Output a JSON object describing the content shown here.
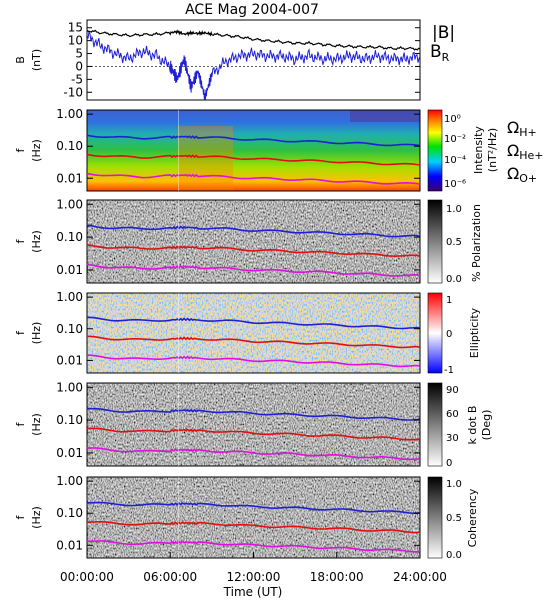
{
  "chart_data": [
    {
      "type": "line",
      "title": "ACE Mag 2004-007",
      "ylabel": "B\n(nT)",
      "y_ticks": [
        "15",
        "10",
        "5",
        "0",
        "-5",
        "-10"
      ],
      "ylim": [
        -13,
        18
      ],
      "legend": [
        {
          "name": "|B|",
          "color": "#000000"
        },
        {
          "name": "B",
          "sub": "R",
          "color": "#1f1fd6"
        }
      ],
      "x_hours": [
        0,
        1,
        2,
        3,
        4,
        5,
        6,
        6.5,
        7,
        7.5,
        8,
        8.5,
        9,
        10,
        11,
        12,
        13,
        14,
        15,
        16,
        17,
        18,
        19,
        20,
        21,
        22,
        23,
        24
      ],
      "series": [
        {
          "name": "|B|",
          "color": "#000000",
          "values": [
            14,
            13,
            12.5,
            12,
            12.3,
            12.5,
            13,
            13.5,
            12.5,
            13,
            12.8,
            13,
            12.5,
            12,
            11.5,
            10.5,
            10,
            9.5,
            9,
            9,
            8.5,
            8,
            7.8,
            7.5,
            7.5,
            7,
            7,
            6.8
          ]
        },
        {
          "name": "B_R",
          "color": "#1f1fd6",
          "values": [
            12,
            8,
            5,
            3,
            6,
            4,
            0,
            -5,
            3,
            -8,
            -2,
            -12,
            -3,
            2,
            4,
            5,
            4,
            4,
            3,
            4,
            3,
            3,
            4,
            3,
            4,
            3,
            3,
            4
          ]
        }
      ]
    },
    {
      "type": "heatmap",
      "ylabel": "f\n(Hz)",
      "y_ticks": [
        "1.00",
        "0.10",
        "0.01"
      ],
      "colorbar_label": "Intensity\n(nT²/Hz)",
      "colorbar_ticks": [
        "10⁰",
        "10⁻²",
        "10⁻⁴",
        "10⁻⁶"
      ],
      "gyro_labels": [
        {
          "text": "Ω",
          "sub": "H+",
          "color": "#1f1fd6"
        },
        {
          "text": "Ω",
          "sub": "He+",
          "color": "#e01010"
        },
        {
          "text": "Ω",
          "sub": "O+",
          "color": "#e010e0"
        }
      ]
    },
    {
      "type": "heatmap",
      "ylabel": "f\n(Hz)",
      "y_ticks": [
        "1.00",
        "0.10",
        "0.01"
      ],
      "colorbar_label": "% Polarization",
      "colorbar_ticks": [
        "1.0",
        "0.5",
        "0.0"
      ]
    },
    {
      "type": "heatmap",
      "ylabel": "f\n(Hz)",
      "y_ticks": [
        "1.00",
        "0.10",
        "0.01"
      ],
      "colorbar_label": "Ellipticity",
      "colorbar_ticks": [
        "1",
        "0",
        "-1"
      ]
    },
    {
      "type": "heatmap",
      "ylabel": "f\n(Hz)",
      "y_ticks": [
        "1.00",
        "0.10",
        "0.01"
      ],
      "colorbar_label": "k dot B\n(Deg)",
      "colorbar_ticks": [
        "90",
        "60",
        "30",
        "0"
      ]
    },
    {
      "type": "heatmap",
      "ylabel": "f\n(Hz)",
      "y_ticks": [
        "1.00",
        "0.10",
        "0.01"
      ],
      "colorbar_label": "Coherency",
      "colorbar_ticks": [
        "1.0",
        "0.5",
        "0.0"
      ]
    }
  ],
  "gyrofrequency_hz": {
    "x_hours": [
      0,
      2,
      4,
      6,
      7,
      8,
      10,
      12,
      14,
      16,
      18,
      20,
      22,
      24
    ],
    "H+": [
      0.22,
      0.19,
      0.18,
      0.19,
      0.2,
      0.19,
      0.18,
      0.16,
      0.15,
      0.14,
      0.13,
      0.12,
      0.11,
      0.105
    ],
    "He+": [
      0.055,
      0.048,
      0.045,
      0.048,
      0.05,
      0.048,
      0.045,
      0.04,
      0.038,
      0.035,
      0.033,
      0.03,
      0.028,
      0.026
    ],
    "O+": [
      0.014,
      0.012,
      0.011,
      0.012,
      0.0125,
      0.012,
      0.011,
      0.01,
      0.0095,
      0.0088,
      0.0082,
      0.0075,
      0.007,
      0.0066
    ]
  },
  "x_axis": {
    "label": "Time (UT)",
    "ticks": [
      "00:00:00",
      "06:00:00",
      "12:00:00",
      "18:00:00",
      "24:00:00"
    ],
    "range_hours": [
      0,
      24
    ]
  },
  "colors": {
    "h_plus": "#1f1fd6",
    "he_plus": "#e01010",
    "o_plus": "#e010e0"
  }
}
